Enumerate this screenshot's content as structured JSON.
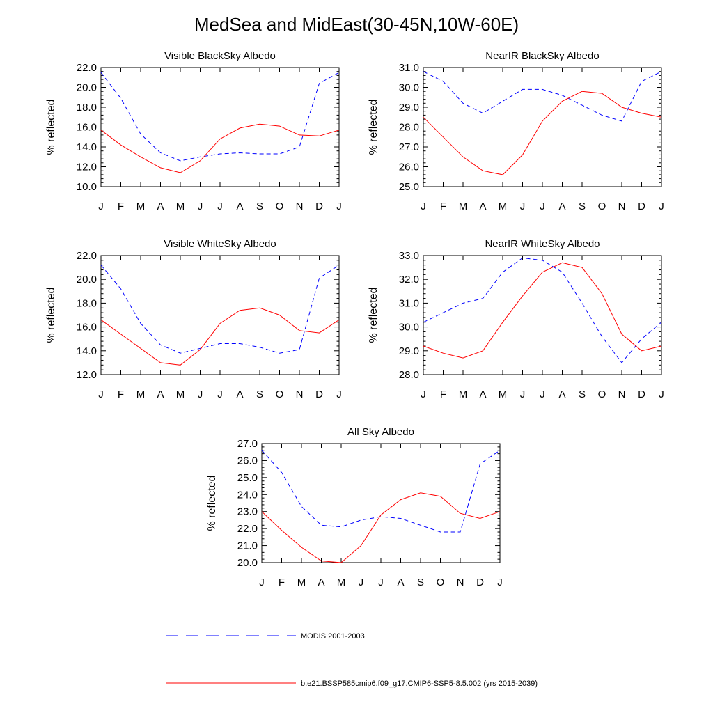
{
  "title": "MedSea and MidEast(30-45N,10W-60E)",
  "legend": [
    {
      "label": "MODIS 2001-2003",
      "color": "#0000ff",
      "dash": true
    },
    {
      "label": "b.e21.BSSP585cmip6.f09_g17.CMIP6-SSP5-8.5.002 (yrs 2015-2039)",
      "color": "#ff0000",
      "dash": false
    }
  ],
  "chart_data": [
    {
      "type": "line",
      "title": "Visible BlackSky Albedo",
      "ylabel": "% reflected",
      "categories": [
        "J",
        "F",
        "M",
        "A",
        "M",
        "J",
        "J",
        "A",
        "S",
        "O",
        "N",
        "D",
        "J"
      ],
      "ylim": [
        10,
        22
      ],
      "yticks": [
        "10.0",
        "12.0",
        "14.0",
        "16.0",
        "18.0",
        "20.0",
        "22.0"
      ],
      "series": [
        {
          "color": "#0000ff",
          "dashed": true,
          "values": [
            21.5,
            18.9,
            15.3,
            13.4,
            12.6,
            13.0,
            13.3,
            13.4,
            13.3,
            13.3,
            14.0,
            20.4,
            21.5
          ]
        },
        {
          "color": "#ff0000",
          "dashed": false,
          "values": [
            15.7,
            14.2,
            13.0,
            11.9,
            11.4,
            12.6,
            14.8,
            15.9,
            16.3,
            16.1,
            15.2,
            15.1,
            15.7
          ]
        }
      ]
    },
    {
      "type": "line",
      "title": "NearIR BlackSky Albedo",
      "ylabel": "% reflected",
      "categories": [
        "J",
        "F",
        "M",
        "A",
        "M",
        "J",
        "J",
        "A",
        "S",
        "O",
        "N",
        "D",
        "J"
      ],
      "ylim": [
        25,
        31
      ],
      "yticks": [
        "25.0",
        "26.0",
        "27.0",
        "28.0",
        "29.0",
        "30.0",
        "31.0"
      ],
      "series": [
        {
          "color": "#0000ff",
          "dashed": true,
          "values": [
            30.8,
            30.3,
            29.2,
            28.7,
            29.3,
            29.9,
            29.9,
            29.6,
            29.1,
            28.6,
            28.3,
            30.3,
            30.8
          ]
        },
        {
          "color": "#ff0000",
          "dashed": false,
          "values": [
            28.5,
            27.5,
            26.5,
            25.8,
            25.6,
            26.6,
            28.3,
            29.3,
            29.8,
            29.7,
            29.0,
            28.7,
            28.5
          ]
        }
      ]
    },
    {
      "type": "line",
      "title": "Visible WhiteSky Albedo",
      "ylabel": "% reflected",
      "categories": [
        "J",
        "F",
        "M",
        "A",
        "M",
        "J",
        "J",
        "A",
        "S",
        "O",
        "N",
        "D",
        "J"
      ],
      "ylim": [
        12,
        22
      ],
      "yticks": [
        "12.0",
        "14.0",
        "16.0",
        "18.0",
        "20.0",
        "22.0"
      ],
      "series": [
        {
          "color": "#0000ff",
          "dashed": true,
          "values": [
            21.2,
            19.2,
            16.3,
            14.5,
            13.8,
            14.2,
            14.6,
            14.6,
            14.3,
            13.8,
            14.1,
            20.1,
            21.2
          ]
        },
        {
          "color": "#ff0000",
          "dashed": false,
          "values": [
            16.6,
            15.4,
            14.2,
            13.0,
            12.8,
            14.1,
            16.3,
            17.4,
            17.6,
            17.0,
            15.7,
            15.5,
            16.6
          ]
        }
      ]
    },
    {
      "type": "line",
      "title": "NearIR WhiteSky Albedo",
      "ylabel": "% reflected",
      "categories": [
        "J",
        "F",
        "M",
        "A",
        "M",
        "J",
        "J",
        "A",
        "S",
        "O",
        "N",
        "D",
        "J"
      ],
      "ylim": [
        28,
        33
      ],
      "yticks": [
        "28.0",
        "29.0",
        "30.0",
        "31.0",
        "32.0",
        "33.0"
      ],
      "series": [
        {
          "color": "#0000ff",
          "dashed": true,
          "values": [
            30.2,
            30.6,
            31.0,
            31.2,
            32.3,
            32.9,
            32.8,
            32.3,
            31.0,
            29.6,
            28.5,
            29.5,
            30.2
          ]
        },
        {
          "color": "#ff0000",
          "dashed": false,
          "values": [
            29.2,
            28.9,
            28.7,
            29.0,
            30.2,
            31.3,
            32.3,
            32.7,
            32.5,
            31.4,
            29.7,
            29.0,
            29.2
          ]
        }
      ]
    },
    {
      "type": "line",
      "title": "All Sky Albedo",
      "ylabel": "% reflected",
      "categories": [
        "J",
        "F",
        "M",
        "A",
        "M",
        "J",
        "J",
        "A",
        "S",
        "O",
        "N",
        "D",
        "J"
      ],
      "ylim": [
        20,
        27
      ],
      "yticks": [
        "20.0",
        "21.0",
        "22.0",
        "23.0",
        "24.0",
        "25.0",
        "26.0",
        "27.0"
      ],
      "series": [
        {
          "color": "#0000ff",
          "dashed": true,
          "values": [
            26.6,
            25.3,
            23.3,
            22.2,
            22.1,
            22.5,
            22.7,
            22.6,
            22.2,
            21.8,
            21.8,
            25.8,
            26.6
          ]
        },
        {
          "color": "#ff0000",
          "dashed": false,
          "values": [
            23.0,
            21.9,
            20.9,
            20.1,
            20.0,
            21.0,
            22.8,
            23.7,
            24.1,
            23.9,
            22.9,
            22.6,
            23.0
          ]
        }
      ]
    }
  ]
}
